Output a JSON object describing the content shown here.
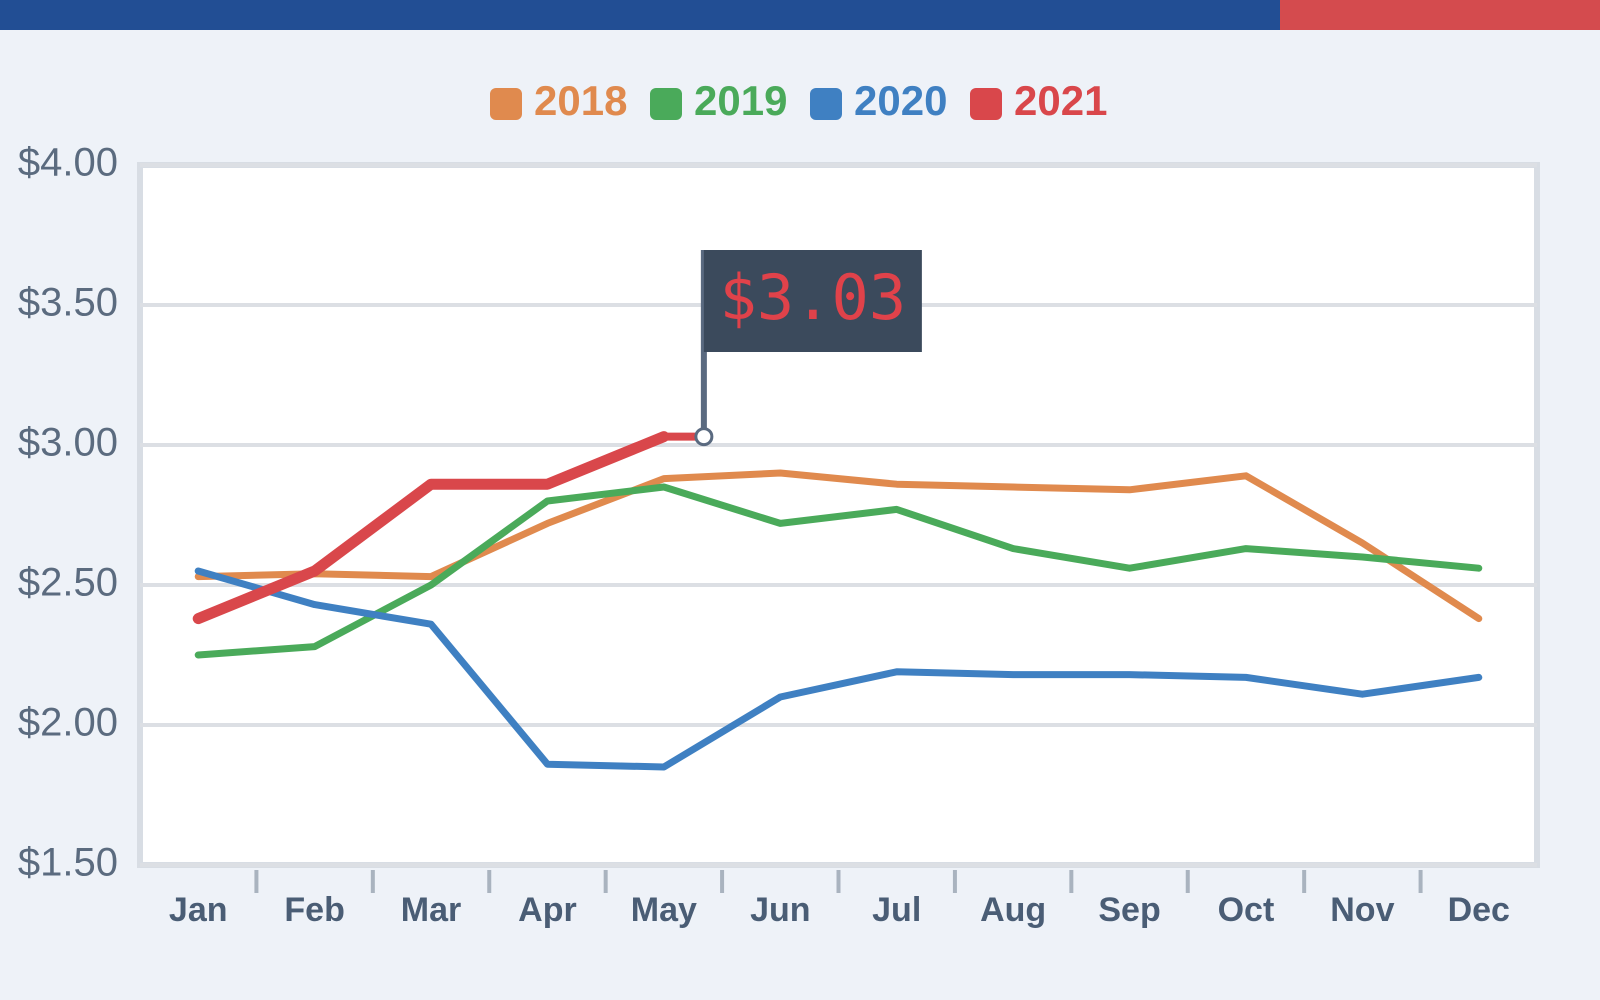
{
  "chart_data": {
    "type": "line",
    "categories": [
      "Jan",
      "Feb",
      "Mar",
      "Apr",
      "May",
      "Jun",
      "Jul",
      "Aug",
      "Sep",
      "Oct",
      "Nov",
      "Dec"
    ],
    "series": [
      {
        "name": "2018",
        "color": "#e08a4e",
        "values": [
          2.53,
          2.54,
          2.53,
          2.72,
          2.88,
          2.9,
          2.86,
          2.85,
          2.84,
          2.89,
          2.65,
          2.38
        ]
      },
      {
        "name": "2019",
        "color": "#4aaa5a",
        "values": [
          2.25,
          2.28,
          2.5,
          2.8,
          2.85,
          2.72,
          2.77,
          2.63,
          2.56,
          2.63,
          2.6,
          2.56
        ]
      },
      {
        "name": "2020",
        "color": "#3f80c2",
        "values": [
          2.55,
          2.43,
          2.36,
          1.86,
          1.85,
          2.1,
          2.19,
          2.18,
          2.18,
          2.17,
          2.11,
          2.17
        ]
      },
      {
        "name": "2021",
        "color": "#d9474b",
        "values": [
          2.38,
          2.55,
          2.86,
          2.86,
          3.03,
          null,
          null,
          null,
          null,
          null,
          null,
          null
        ]
      }
    ],
    "ylim": [
      1.5,
      4.0
    ],
    "yticks": [
      {
        "value": 1.5,
        "label": "$1.50"
      },
      {
        "value": 2.0,
        "label": "$2.00"
      },
      {
        "value": 2.5,
        "label": "$2.50"
      },
      {
        "value": 3.0,
        "label": "$3.00"
      },
      {
        "value": 3.5,
        "label": "$3.50"
      },
      {
        "value": 4.0,
        "label": "$4.00"
      }
    ],
    "grid": true,
    "legend": "top",
    "annotation": "$3.03"
  }
}
